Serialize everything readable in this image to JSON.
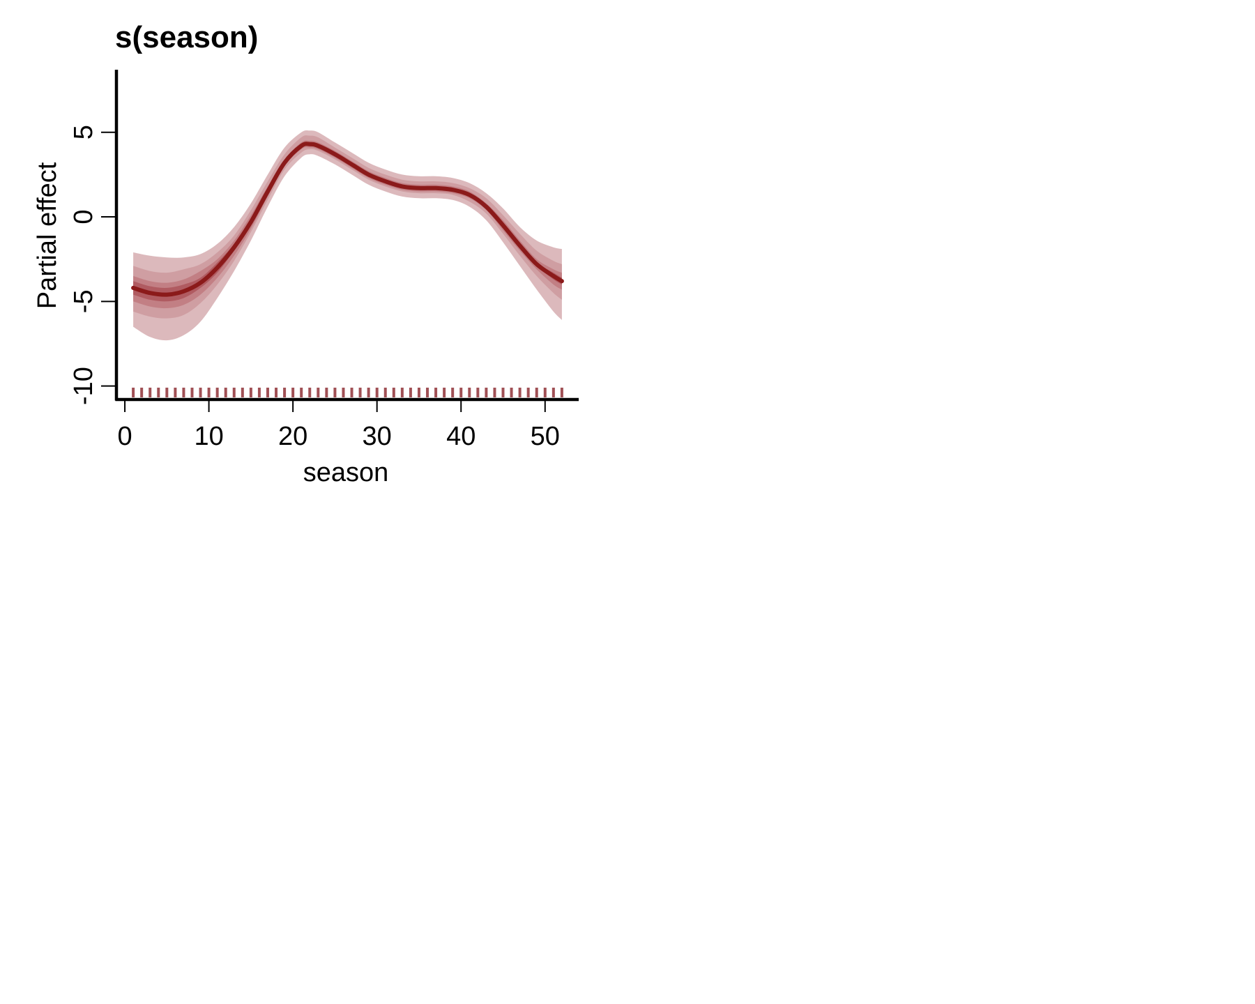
{
  "chart_data": {
    "type": "line",
    "title": "s(season)",
    "xlabel": "season",
    "ylabel": "Partial effect",
    "xlim": [
      -1,
      54
    ],
    "ylim": [
      -10.8,
      8.7
    ],
    "xticks": [
      0,
      10,
      20,
      30,
      40,
      50
    ],
    "yticks": [
      -10,
      -5,
      0,
      5
    ],
    "xtick_labels": [
      "0",
      "10",
      "20",
      "30",
      "40",
      "50"
    ],
    "ytick_labels": [
      "-10",
      "-5",
      "0",
      "5"
    ],
    "grid": false,
    "legend": "none",
    "colors": {
      "line": "#8b1a1a",
      "band_outer": "#dcb9bc",
      "band_2": "#cf9ea2",
      "band_3": "#c27f84",
      "band_inner": "#b05b61",
      "rug": "#a05055"
    },
    "series": [
      {
        "x": [
          1,
          3,
          5,
          7,
          9,
          11,
          13,
          15,
          17,
          19,
          21,
          22,
          23,
          25,
          27,
          29,
          31,
          33,
          35,
          37,
          39,
          41,
          43,
          45,
          47,
          49,
          51,
          52
        ],
        "y": [
          -4.2,
          -4.5,
          -4.6,
          -4.4,
          -3.9,
          -3.0,
          -1.8,
          -0.3,
          1.5,
          3.2,
          4.2,
          4.3,
          4.2,
          3.7,
          3.1,
          2.5,
          2.1,
          1.8,
          1.7,
          1.7,
          1.6,
          1.3,
          0.6,
          -0.5,
          -1.7,
          -2.8,
          -3.5,
          -3.8
        ],
        "bands": [
          {
            "lower": [
              -6.5,
              -7.1,
              -7.3,
              -7.0,
              -6.2,
              -4.8,
              -3.2,
              -1.4,
              0.6,
              2.4,
              3.5,
              3.7,
              3.6,
              3.1,
              2.5,
              1.9,
              1.5,
              1.2,
              1.1,
              1.1,
              1.0,
              0.6,
              -0.2,
              -1.5,
              -2.9,
              -4.3,
              -5.6,
              -6.1
            ],
            "upper": [
              -2.1,
              -2.3,
              -2.4,
              -2.4,
              -2.2,
              -1.6,
              -0.6,
              0.8,
              2.5,
              4.1,
              5.0,
              5.1,
              5.0,
              4.4,
              3.8,
              3.2,
              2.8,
              2.5,
              2.4,
              2.4,
              2.3,
              2.0,
              1.4,
              0.5,
              -0.6,
              -1.4,
              -1.8,
              -1.9
            ]
          },
          {
            "lower": [
              -5.6,
              -5.9,
              -6.0,
              -5.8,
              -5.1,
              -4.0,
              -2.6,
              -0.9,
              1.0,
              2.8,
              3.8,
              4.0,
              3.9,
              3.4,
              2.8,
              2.2,
              1.8,
              1.5,
              1.4,
              1.4,
              1.3,
              0.9,
              0.2,
              -1.0,
              -2.3,
              -3.5,
              -4.5,
              -4.9
            ],
            "upper": [
              -2.9,
              -3.2,
              -3.3,
              -3.1,
              -2.8,
              -2.1,
              -1.1,
              0.4,
              2.1,
              3.7,
              4.7,
              4.8,
              4.7,
              4.1,
              3.5,
              2.9,
              2.5,
              2.2,
              2.1,
              2.1,
              2.0,
              1.7,
              1.1,
              0.1,
              -1.0,
              -2.0,
              -2.6,
              -2.8
            ]
          },
          {
            "lower": [
              -5.0,
              -5.3,
              -5.4,
              -5.2,
              -4.6,
              -3.6,
              -2.3,
              -0.7,
              1.2,
              3.0,
              4.0,
              4.1,
              4.0,
              3.5,
              2.9,
              2.3,
              1.9,
              1.6,
              1.5,
              1.5,
              1.4,
              1.1,
              0.4,
              -0.8,
              -2.0,
              -3.1,
              -4.0,
              -4.3
            ],
            "upper": [
              -3.5,
              -3.8,
              -3.9,
              -3.7,
              -3.2,
              -2.5,
              -1.4,
              0.1,
              1.8,
              3.4,
              4.4,
              4.5,
              4.4,
              3.9,
              3.3,
              2.7,
              2.3,
              2.0,
              1.9,
              1.9,
              1.8,
              1.5,
              0.8,
              -0.2,
              -1.4,
              -2.5,
              -3.1,
              -3.3
            ]
          },
          {
            "lower": [
              -4.6,
              -4.9,
              -5.0,
              -4.8,
              -4.2,
              -3.3,
              -2.0,
              -0.5,
              1.3,
              3.1,
              4.1,
              4.2,
              4.1,
              3.6,
              3.0,
              2.4,
              2.0,
              1.7,
              1.6,
              1.6,
              1.5,
              1.2,
              0.5,
              -0.6,
              -1.8,
              -2.9,
              -3.7,
              -4.0
            ],
            "upper": [
              -3.8,
              -4.1,
              -4.2,
              -4.0,
              -3.6,
              -2.7,
              -1.6,
              -0.1,
              1.7,
              3.3,
              4.3,
              4.4,
              4.3,
              3.8,
              3.2,
              2.6,
              2.2,
              1.9,
              1.8,
              1.8,
              1.7,
              1.4,
              0.7,
              -0.4,
              -1.6,
              -2.7,
              -3.3,
              -3.6
            ]
          }
        ]
      }
    ],
    "rug": [
      1,
      2,
      3,
      4,
      5,
      6,
      7,
      8,
      9,
      10,
      11,
      12,
      13,
      14,
      15,
      16,
      17,
      18,
      19,
      20,
      21,
      22,
      23,
      24,
      25,
      26,
      27,
      28,
      29,
      30,
      31,
      32,
      33,
      34,
      35,
      36,
      37,
      38,
      39,
      40,
      41,
      42,
      43,
      44,
      45,
      46,
      47,
      48,
      49,
      50,
      51,
      52
    ]
  }
}
